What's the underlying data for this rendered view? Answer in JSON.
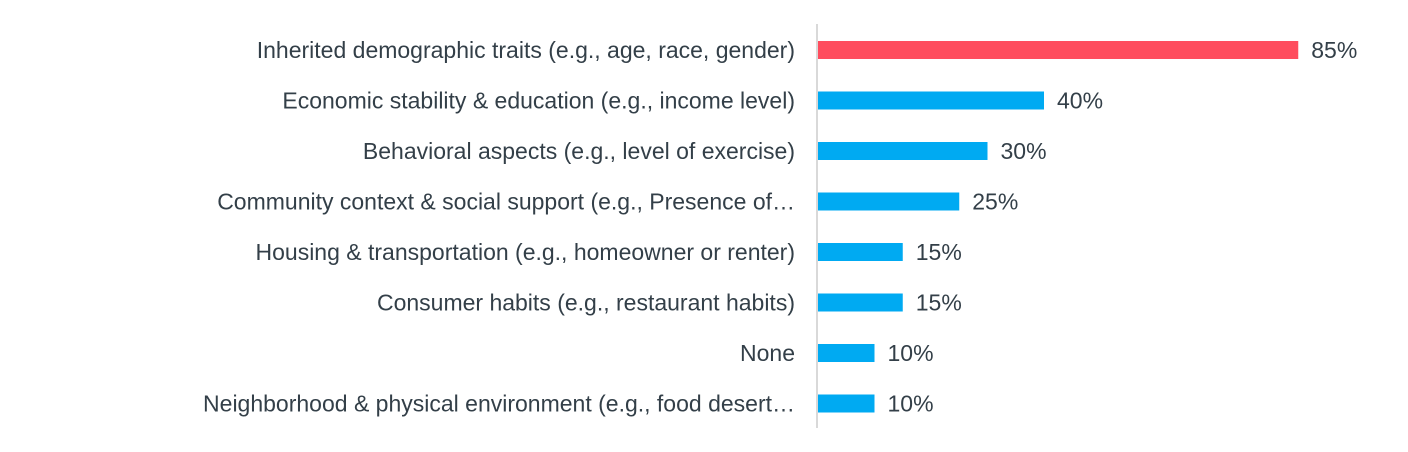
{
  "chart_data": {
    "type": "bar",
    "orientation": "horizontal",
    "title": "",
    "xlabel": "",
    "ylabel": "",
    "xlim": [
      0,
      100
    ],
    "grid": false,
    "legend": "none",
    "categories": [
      "Inherited demographic traits (e.g., age, race, gender)",
      "Economic stability & education (e.g., income level)",
      "Behavioral aspects (e.g., level of exercise)",
      "Community context & social support (e.g., Presence of…",
      "Housing & transportation (e.g., homeowner or renter)",
      "Consumer habits (e.g., restaurant habits)",
      "None",
      "Neighborhood & physical environment (e.g., food desert…"
    ],
    "values": [
      85,
      40,
      30,
      25,
      15,
      15,
      10,
      10
    ],
    "value_labels": [
      "85%",
      "40%",
      "30%",
      "25%",
      "15%",
      "15%",
      "10%",
      "10%"
    ],
    "colors": {
      "highlight": "#ff4d5e",
      "default": "#00aaf2",
      "axis": "#d9d9d9",
      "text": "#333f48"
    },
    "highlight_index": 0
  }
}
